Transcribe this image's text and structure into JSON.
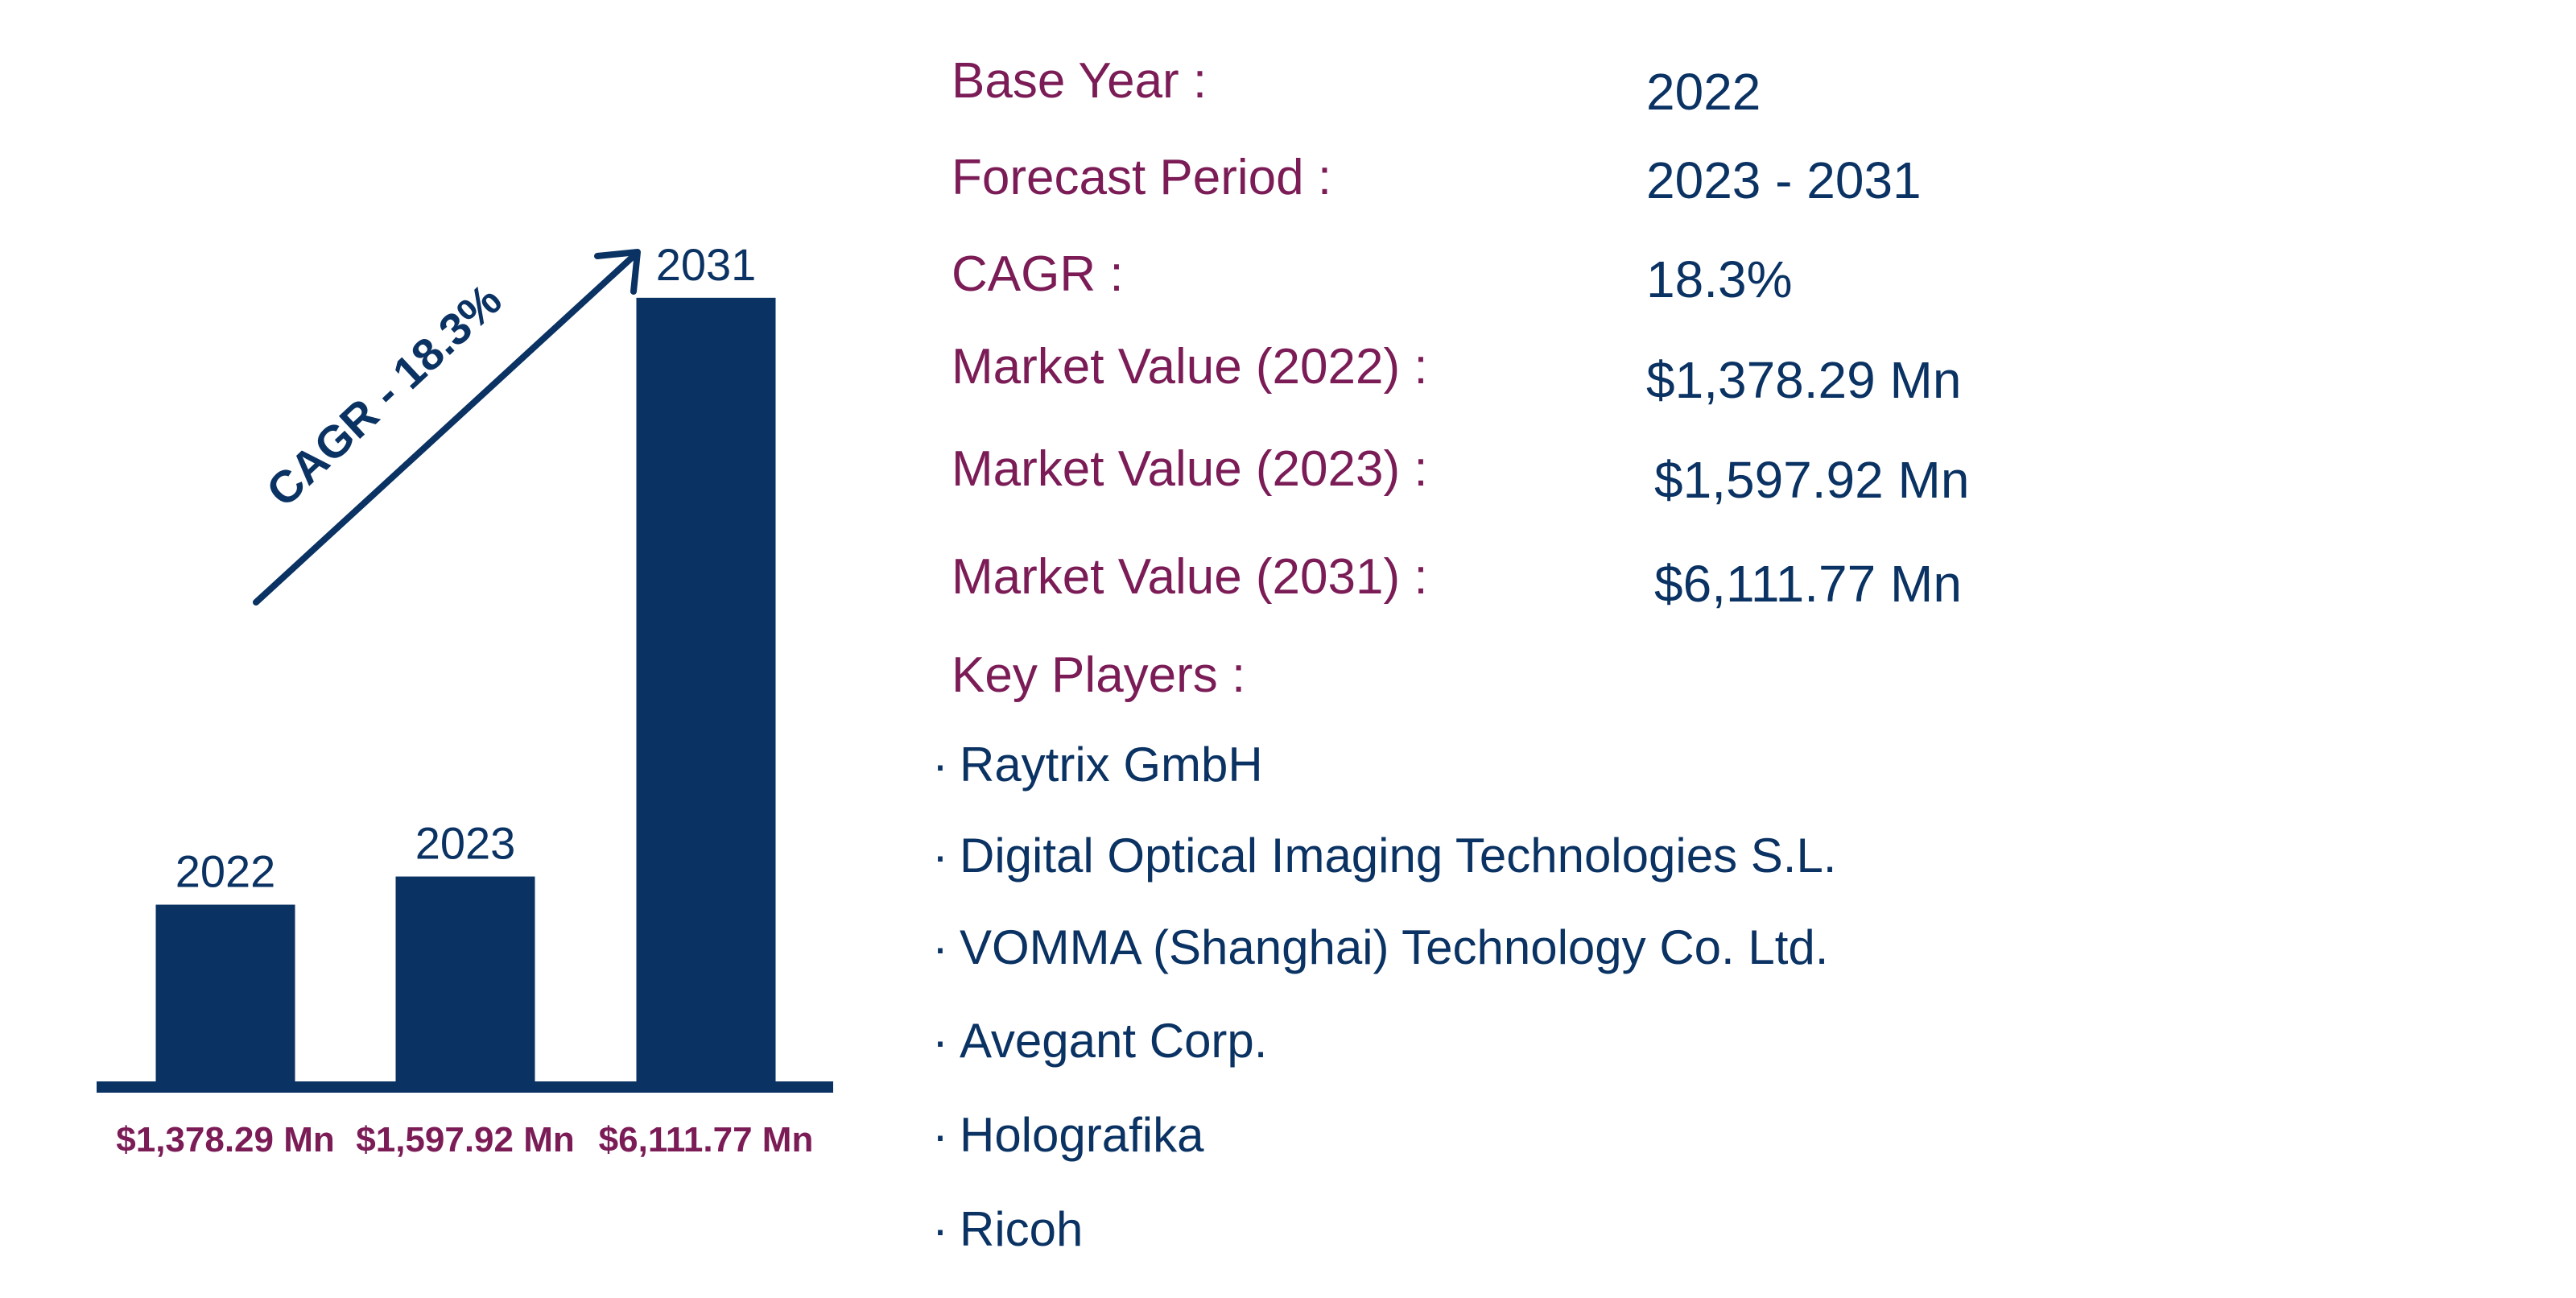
{
  "colors": {
    "bar": "#0a3263",
    "accent": "#7b1c57",
    "text": "#0a3263"
  },
  "chart_data": {
    "type": "bar",
    "categories": [
      "2022",
      "2023",
      "2031"
    ],
    "values": [
      1378.29,
      1597.92,
      6111.77
    ],
    "value_labels": [
      "$1,378.29 Mn",
      "$1,597.92 Mn",
      "$6,111.77 Mn"
    ],
    "annotation": "CAGR - 18.3%",
    "ylim": [
      0,
      6500
    ],
    "grid": false
  },
  "stats": [
    {
      "label": "Base Year :",
      "value": "2022"
    },
    {
      "label": "Forecast Period :",
      "value": "2023 - 2031"
    },
    {
      "label": "CAGR :",
      "value": "18.3%"
    },
    {
      "label": "Market Value (2022) :",
      "value": "$1,378.29 Mn"
    },
    {
      "label": "Market Value (2023) :",
      "value": "$1,597.92 Mn"
    },
    {
      "label": "Market Value (2031) :",
      "value": "$6,111.77 Mn"
    }
  ],
  "key_players": {
    "title": "Key Players :",
    "bullet": "·",
    "items": [
      "Raytrix GmbH",
      "Digital Optical Imaging Technologies S.L.",
      "VOMMA (Shanghai) Technology Co. Ltd.",
      "Avegant Corp.",
      "Holografika",
      "Ricoh"
    ]
  }
}
